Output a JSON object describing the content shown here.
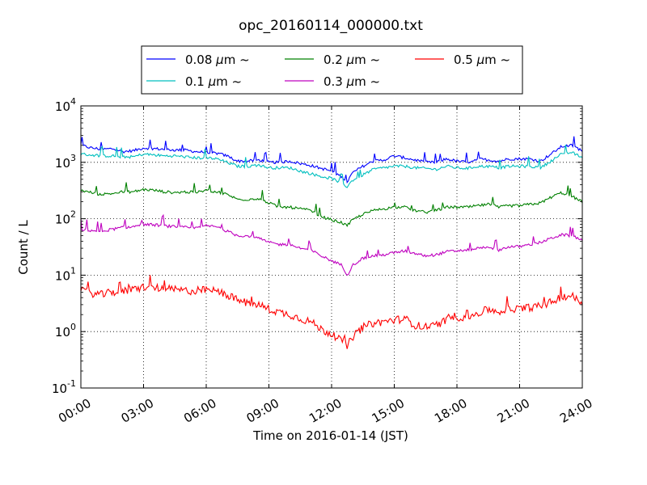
{
  "chart_data": {
    "type": "line",
    "title": "opc_20160114_000000.txt",
    "xlabel": "Time on 2016-01-14 (JST)",
    "ylabel": "Count / L",
    "x_unit": "hours",
    "xlim": [
      0,
      24
    ],
    "ylim": [
      0.1,
      10000
    ],
    "yscale": "log",
    "grid": true,
    "legend_position": "top-center",
    "legend_columns": 3,
    "x_ticks": [
      0,
      3,
      6,
      9,
      12,
      15,
      18,
      21,
      24
    ],
    "x_tick_labels": [
      "00:00",
      "03:00",
      "06:00",
      "09:00",
      "12:00",
      "15:00",
      "18:00",
      "21:00",
      "24:00"
    ],
    "y_ticks": [
      0.1,
      1,
      10,
      100,
      1000,
      10000
    ],
    "y_tick_base": "10",
    "y_tick_exponents": [
      "-1",
      "0",
      "1",
      "2",
      "3",
      "4"
    ],
    "x": [
      0,
      0.5,
      1,
      1.5,
      2,
      2.5,
      3,
      3.5,
      4,
      4.5,
      5,
      5.5,
      6,
      6.5,
      7,
      7.5,
      8,
      8.5,
      9,
      9.5,
      10,
      10.5,
      11,
      11.5,
      12,
      12.5,
      12.75,
      13,
      13.5,
      14,
      14.5,
      15,
      15.5,
      16,
      16.5,
      17,
      17.5,
      18,
      18.5,
      19,
      19.5,
      20,
      20.5,
      21,
      21.5,
      22,
      22.5,
      23,
      23.5,
      24
    ],
    "series": [
      {
        "name": "0.08 μm ~",
        "name_unit_sym": "μm",
        "name_size": "0.08",
        "color": "#0000ff",
        "values": [
          2000,
          1800,
          1700,
          1750,
          1550,
          1600,
          1800,
          1750,
          1700,
          1650,
          1650,
          1550,
          1500,
          1450,
          1300,
          1050,
          1050,
          1100,
          1000,
          1000,
          1050,
          950,
          880,
          780,
          700,
          550,
          450,
          650,
          850,
          1050,
          1100,
          1300,
          1200,
          1100,
          1000,
          1000,
          1150,
          1050,
          1000,
          1150,
          1100,
          1050,
          1150,
          1150,
          1150,
          1050,
          1400,
          1900,
          2000,
          1600
        ]
      },
      {
        "name": "0.1 μm ~",
        "name_unit_sym": "μm",
        "name_size": "0.1",
        "color": "#00bfbf",
        "values": [
          1400,
          1350,
          1300,
          1300,
          1250,
          1250,
          1400,
          1350,
          1300,
          1300,
          1250,
          1200,
          1200,
          1150,
          1000,
          850,
          850,
          900,
          800,
          800,
          800,
          700,
          630,
          560,
          520,
          420,
          370,
          480,
          600,
          750,
          800,
          850,
          850,
          800,
          780,
          750,
          850,
          800,
          780,
          850,
          850,
          800,
          850,
          850,
          850,
          800,
          1050,
          1400,
          1500,
          1200
        ]
      },
      {
        "name": "0.2 μm ~",
        "name_unit_sym": "μm",
        "name_size": "0.2",
        "color": "#008000",
        "values": [
          320,
          290,
          270,
          280,
          300,
          300,
          330,
          320,
          300,
          290,
          300,
          290,
          320,
          300,
          270,
          220,
          220,
          230,
          190,
          160,
          160,
          150,
          140,
          110,
          95,
          85,
          75,
          95,
          120,
          140,
          150,
          160,
          160,
          140,
          130,
          140,
          160,
          160,
          160,
          170,
          180,
          160,
          170,
          170,
          180,
          190,
          240,
          290,
          250,
          200
        ]
      },
      {
        "name": "0.3 μm ~",
        "name_unit_sym": "μm",
        "name_size": "0.3",
        "color": "#bf00bf",
        "values": [
          65,
          62,
          60,
          65,
          70,
          72,
          80,
          78,
          75,
          72,
          70,
          68,
          75,
          72,
          60,
          50,
          50,
          45,
          38,
          35,
          35,
          30,
          28,
          22,
          18,
          15,
          10,
          15,
          20,
          22,
          23,
          25,
          27,
          24,
          22,
          23,
          26,
          27,
          28,
          30,
          32,
          28,
          32,
          32,
          35,
          38,
          45,
          52,
          50,
          42
        ]
      },
      {
        "name": "0.5 μm ~",
        "name_unit_sym": "μm",
        "name_size": "0.5",
        "color": "#ff0000",
        "values": [
          5.2,
          4.8,
          4.5,
          5,
          5.2,
          5.5,
          6.2,
          6,
          5.8,
          5.5,
          5.3,
          5.2,
          5.5,
          5.2,
          4.5,
          3.6,
          3.2,
          3,
          2.5,
          2.2,
          2,
          1.7,
          1.5,
          1.1,
          0.9,
          0.7,
          0.55,
          0.8,
          1.2,
          1.4,
          1.5,
          1.6,
          1.7,
          1.3,
          1.2,
          1.3,
          1.6,
          1.8,
          1.8,
          2.1,
          2.5,
          2.2,
          2.6,
          2.5,
          2.7,
          2.8,
          3.3,
          4.2,
          4.3,
          3.2
        ]
      }
    ]
  }
}
